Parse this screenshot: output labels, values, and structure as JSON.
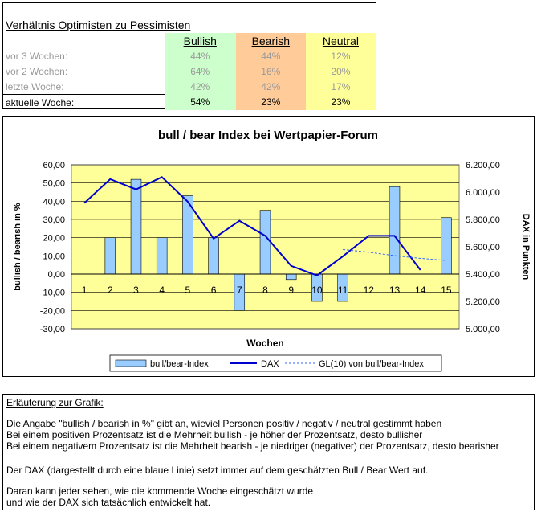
{
  "ratio": {
    "title": "Verhältnis Optimisten zu Pessimisten",
    "headers": [
      "Bullish",
      "Bearish",
      "Neutral"
    ],
    "rows": [
      {
        "label": "vor 3 Wochen:",
        "values": [
          "44%",
          "44%",
          "12%"
        ]
      },
      {
        "label": "vor 2 Wochen:",
        "values": [
          "64%",
          "16%",
          "20%"
        ]
      },
      {
        "label": "letzte Woche:",
        "values": [
          "42%",
          "42%",
          "17%"
        ]
      },
      {
        "label": "aktuelle Woche:",
        "values": [
          "54%",
          "23%",
          "23%"
        ]
      }
    ]
  },
  "chart_data": {
    "type": "bar",
    "title": "bull / bear Index bei Wertpapier-Forum",
    "xlabel": "Wochen",
    "ylabel": "bullish / bearish in %",
    "y2label": "DAX in Punkten",
    "categories": [
      "1",
      "2",
      "3",
      "4",
      "5",
      "6",
      "7",
      "8",
      "9",
      "10",
      "11",
      "12",
      "13",
      "14",
      "15"
    ],
    "ylim": [
      -30,
      60
    ],
    "yticks": [
      "60,00",
      "50,00",
      "40,00",
      "30,00",
      "20,00",
      "10,00",
      "0,00",
      "-10,00",
      "-20,00",
      "-30,00"
    ],
    "y2lim": [
      5000,
      6200
    ],
    "y2ticks": [
      "6.200,00",
      "6.000,00",
      "5.800,00",
      "5.600,00",
      "5.400,00",
      "5.200,00",
      "5.000,00"
    ],
    "series": [
      {
        "name": "bull/bear-Index",
        "kind": "bar",
        "axis": "left",
        "color": "#99ccff",
        "values": [
          0,
          20,
          52,
          20,
          43,
          20,
          -20,
          35,
          -3,
          -15,
          -15,
          0,
          48,
          0,
          31
        ]
      },
      {
        "name": "DAX",
        "kind": "line",
        "axis": "right",
        "color": "#0000cc",
        "values": [
          5920,
          6095,
          6020,
          6110,
          5930,
          5660,
          5790,
          5680,
          5460,
          5390,
          5530,
          5680,
          5680,
          5430,
          null
        ]
      },
      {
        "name": "GL(10) von bull/bear-Index",
        "kind": "dashed",
        "axis": "right",
        "color": "#3366ff",
        "values": [
          null,
          null,
          null,
          null,
          null,
          null,
          null,
          null,
          null,
          null,
          5580,
          5560,
          5535,
          5515,
          5500
        ]
      }
    ],
    "legend": "bottom",
    "grid": true,
    "plot_bg": "#ffff99"
  },
  "explanation": {
    "heading": "Erläuterung zur Grafik:",
    "lines": [
      "Die Angabe \"bullish / bearish in %\" gibt an, wieviel Personen positiv / negativ / neutral gestimmt haben",
      "Bei einem positiven Prozentsatz ist die Mehrheit bullish - je höher der Prozentsatz, desto bullisher",
      "Bei einem negativem Prozentsatz ist die Mehrheit bearish - je niedriger (negativer) der Prozentsatz, desto bearisher",
      "Der DAX (dargestellt durch eine blaue Linie) setzt immer auf dem geschätzten Bull / Bear Wert auf.",
      "Daran kann jeder sehen, wie die kommende Woche eingeschätzt wurde",
      "und wie der DAX sich tatsächlich entwickelt hat."
    ]
  }
}
